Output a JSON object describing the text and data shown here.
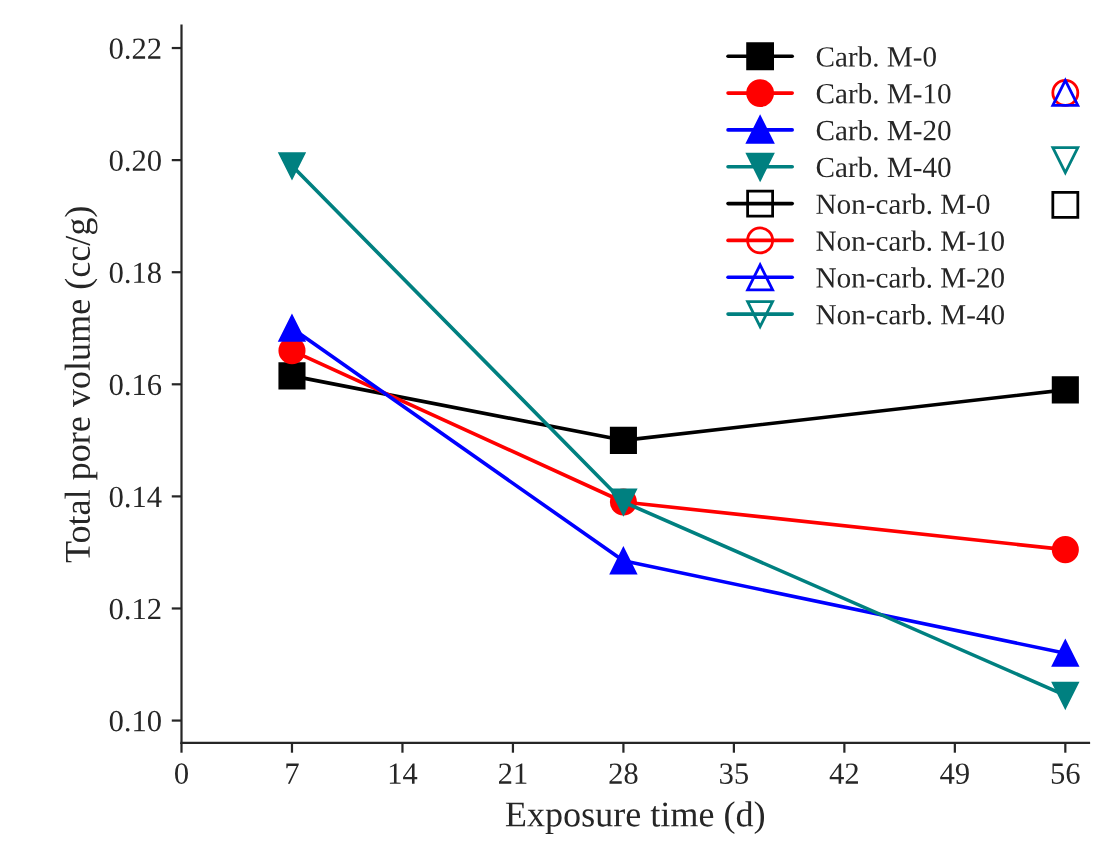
{
  "chart_data": {
    "type": "line",
    "xlabel": "Exposure time (d)",
    "ylabel": "Total pore volume (cc/g)",
    "xlim": [
      0,
      57.5
    ],
    "ylim": [
      0.096,
      0.224
    ],
    "xticks": [
      0,
      7,
      14,
      21,
      28,
      35,
      42,
      49,
      56
    ],
    "yticks": [
      {
        "value": 0.1,
        "label": "0.10"
      },
      {
        "value": 0.12,
        "label": "0.12"
      },
      {
        "value": 0.14,
        "label": "0.14"
      },
      {
        "value": 0.16,
        "label": "0.16"
      },
      {
        "value": 0.18,
        "label": "0.18"
      },
      {
        "value": 0.2,
        "label": "0.20"
      },
      {
        "value": 0.22,
        "label": "0.22"
      }
    ],
    "legend": "top right",
    "grid": false,
    "series": [
      {
        "name": "Carb. M-0",
        "color": "#000000",
        "marker": "square",
        "x": [
          7,
          28,
          56
        ],
        "values": [
          0.1615,
          0.15,
          0.159
        ]
      },
      {
        "name": "Carb. M-10",
        "color": "#ff0000",
        "marker": "circle",
        "x": [
          7,
          28,
          56
        ],
        "values": [
          0.166,
          0.139,
          0.1305
        ]
      },
      {
        "name": "Carb. M-20",
        "color": "#0000ff",
        "marker": "triangle",
        "x": [
          7,
          28,
          56
        ],
        "values": [
          0.17,
          0.1285,
          0.112
        ]
      },
      {
        "name": "Carb. M-40",
        "color": "#008080",
        "marker": "triangle_down",
        "x": [
          7,
          28,
          56
        ],
        "values": [
          0.199,
          0.139,
          0.1045
        ]
      },
      {
        "name": "Non-carb. M-0",
        "type": "scatter",
        "color": "#000000",
        "marker": "square",
        "x": [
          56
        ],
        "values": [
          0.192
        ]
      },
      {
        "name": "Non-carb. M-10",
        "type": "scatter",
        "color": "#ff0000",
        "marker": "circle",
        "x": [
          56
        ],
        "values": [
          0.212
        ]
      },
      {
        "name": "Non-carb. M-20",
        "type": "scatter",
        "color": "#0000ff",
        "marker": "triangle",
        "x": [
          56
        ],
        "values": [
          0.212
        ]
      },
      {
        "name": "Non-carb. M-40",
        "type": "scatter",
        "color": "#008080",
        "marker": "triangle_down",
        "x": [
          56
        ],
        "values": [
          0.2
        ]
      }
    ]
  }
}
